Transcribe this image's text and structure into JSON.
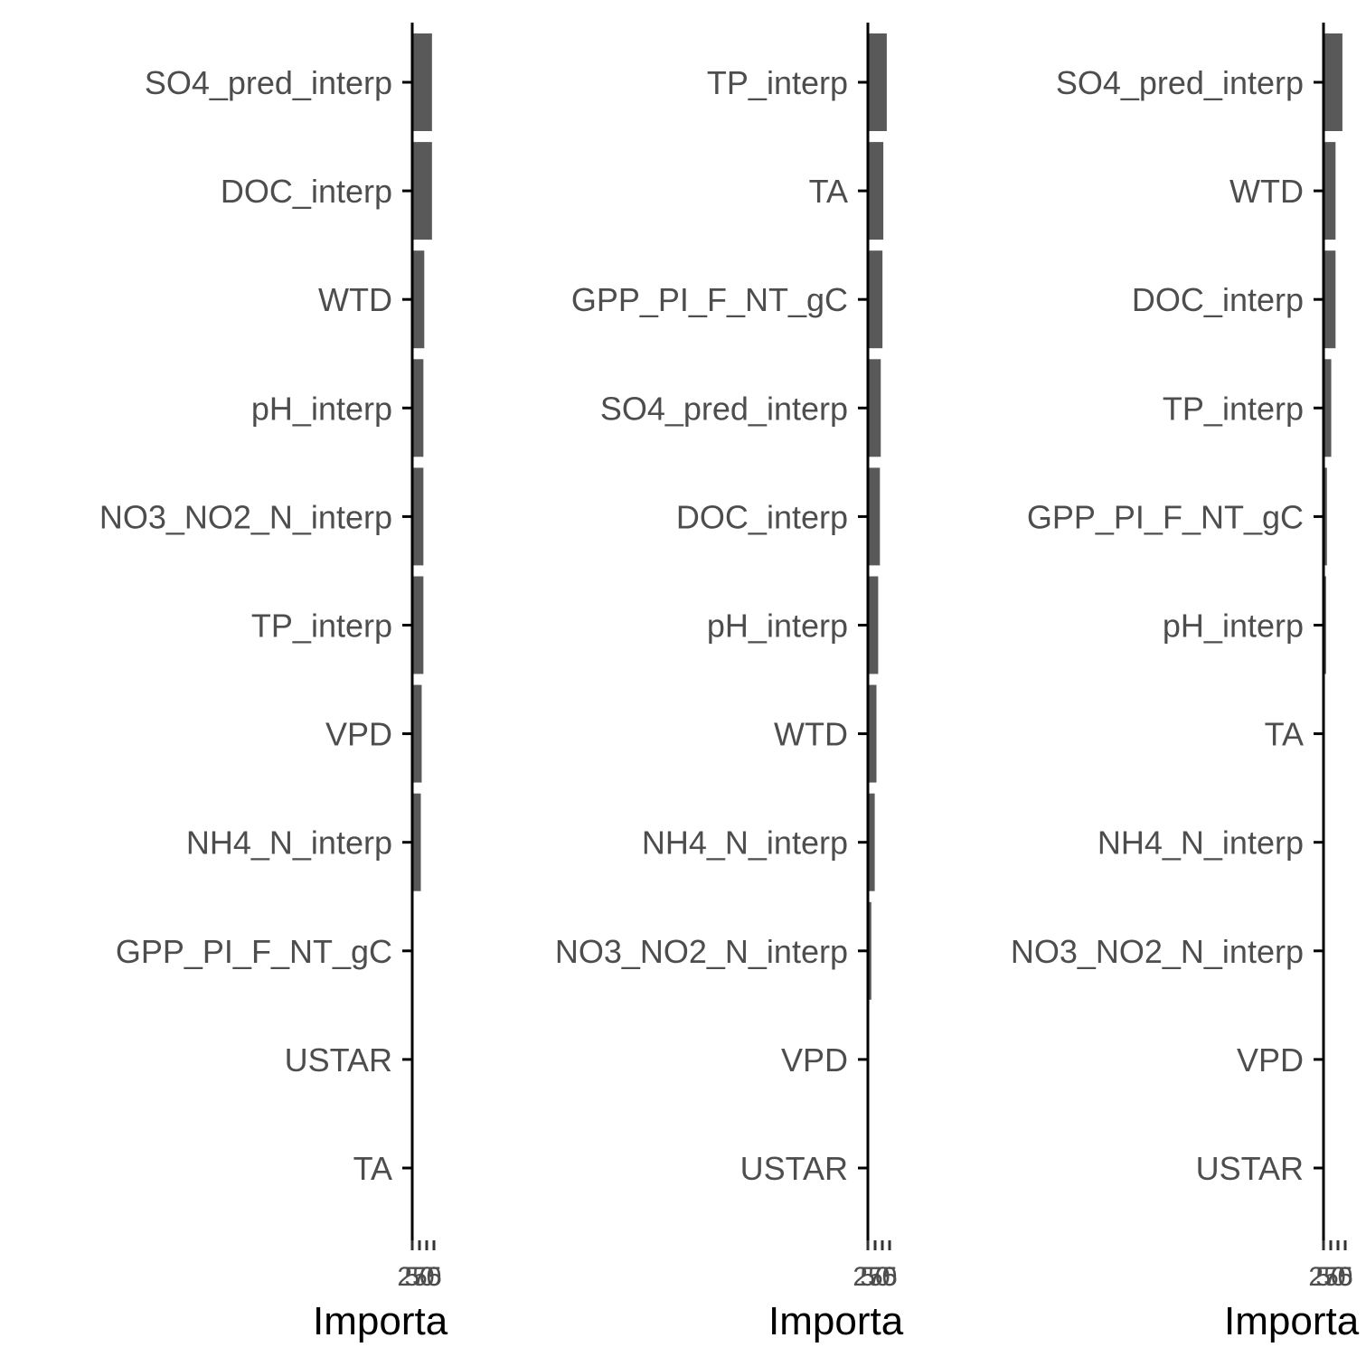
{
  "colors": {
    "bar": "#595959",
    "axis": "#000000",
    "label": "#4d4d4d"
  },
  "chart_data": [
    {
      "type": "bar",
      "orientation": "horizontal",
      "categories": [
        "SO4_pred_interp",
        "DOC_interp",
        "WTD",
        "pH_interp",
        "NO3_NO2_N_interp",
        "TP_interp",
        "VPD",
        "NH4_N_interp",
        "GPP_PI_F_NT_gC",
        "USTAR",
        "TA"
      ],
      "values": [
        23,
        23,
        14,
        13,
        13,
        13,
        11,
        10,
        0.4,
        0.2,
        0.1
      ],
      "xlabel": "Importa",
      "xtick_labels": [
        "25",
        "50",
        "75",
        "0"
      ],
      "xlim": [
        0,
        25
      ],
      "grid": false
    },
    {
      "type": "bar",
      "orientation": "horizontal",
      "categories": [
        "TP_interp",
        "TA",
        "GPP_PI_F_NT_gC",
        "SO4_pred_interp",
        "DOC_interp",
        "pH_interp",
        "WTD",
        "NH4_N_interp",
        "NO3_NO2_N_interp",
        "VPD",
        "USTAR"
      ],
      "values": [
        22,
        18,
        17,
        15,
        14,
        12,
        10,
        8,
        4,
        1,
        0.5
      ],
      "xlabel": "Importa",
      "xtick_labels": [
        "25",
        "50",
        "75",
        "0"
      ],
      "xlim": [
        0,
        25
      ],
      "grid": false
    },
    {
      "type": "bar",
      "orientation": "horizontal",
      "categories": [
        "SO4_pred_interp",
        "WTD",
        "DOC_interp",
        "TP_interp",
        "GPP_PI_F_NT_gC",
        "pH_interp",
        "TA",
        "NH4_N_interp",
        "NO3_NO2_N_interp",
        "VPD",
        "USTAR"
      ],
      "values": [
        22,
        14,
        14,
        9,
        4,
        3,
        1.5,
        1,
        0.5,
        0.3,
        0.2
      ],
      "xlabel": "Importa",
      "xtick_labels": [
        "25",
        "50",
        "75",
        "0"
      ],
      "xlim": [
        0,
        25
      ],
      "grid": false
    }
  ]
}
